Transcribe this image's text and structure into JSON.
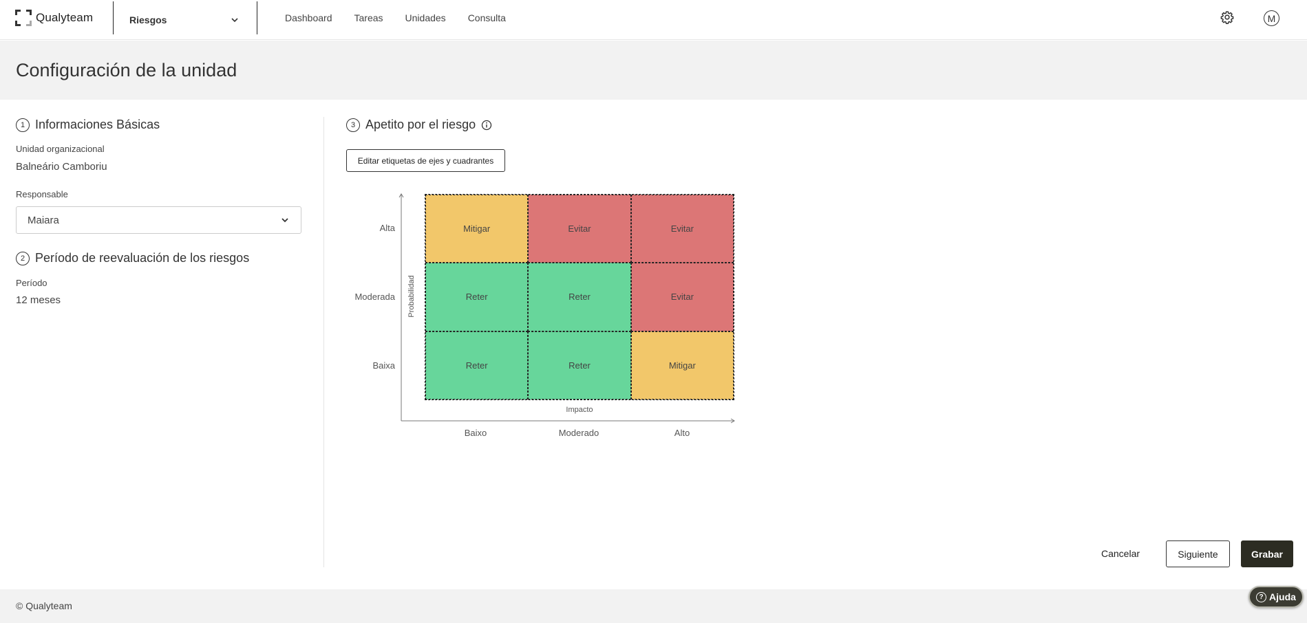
{
  "header": {
    "logo_text": "Qualyteam",
    "module": "Riesgos",
    "nav": [
      "Dashboard",
      "Tareas",
      "Unidades",
      "Consulta"
    ],
    "avatar_initial": "M"
  },
  "page": {
    "title": "Configuración de la unidad"
  },
  "basic_info": {
    "step": "1",
    "title": "Informaciones Básicas",
    "unit_label": "Unidad organizacional",
    "unit_value": "Balneário Camboriu",
    "responsible_label": "Responsable",
    "responsible_value": "Maiara"
  },
  "reevaluation": {
    "step": "2",
    "title": "Período de reevaluación de los riesgos",
    "period_label": "Período",
    "period_value": "12 meses"
  },
  "appetite": {
    "step": "3",
    "title": "Apetito por el riesgo",
    "edit_button": "Editar etiquetas de ejes y cuadrantes",
    "y_axis_title": "Probabilidad",
    "x_axis_title": "Impacto",
    "y_labels": [
      "Alta",
      "Moderada",
      "Baixa"
    ],
    "x_labels": [
      "Baixo",
      "Moderado",
      "Alto"
    ],
    "matrix": [
      [
        {
          "label": "Mitigar",
          "color": "#f2c76a"
        },
        {
          "label": "Evitar",
          "color": "#dc7676"
        },
        {
          "label": "Evitar",
          "color": "#dc7676"
        }
      ],
      [
        {
          "label": "Reter",
          "color": "#67d69b"
        },
        {
          "label": "Reter",
          "color": "#67d69b"
        },
        {
          "label": "Evitar",
          "color": "#dc7676"
        }
      ],
      [
        {
          "label": "Reter",
          "color": "#67d69b"
        },
        {
          "label": "Reter",
          "color": "#67d69b"
        },
        {
          "label": "Mitigar",
          "color": "#f2c76a"
        }
      ]
    ]
  },
  "actions": {
    "cancel": "Cancelar",
    "next": "Siguiente",
    "save": "Grabar"
  },
  "footer": {
    "copyright": "© Qualyteam",
    "help": "Ajuda"
  }
}
